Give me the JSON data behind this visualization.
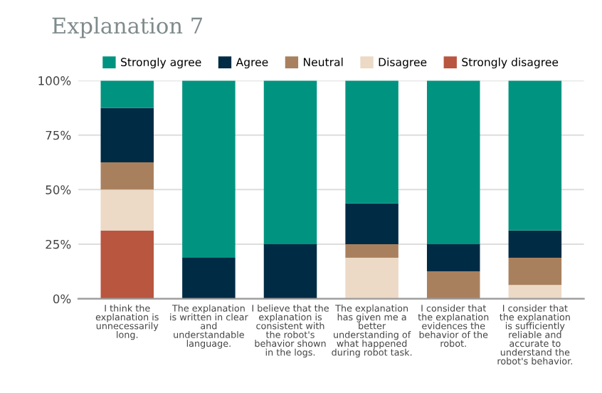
{
  "chart_data": {
    "type": "bar",
    "title": "Explanation 7",
    "stacked": true,
    "legend": "top",
    "grid": "y",
    "categories": [
      "I think the\nexplanation is\nunnecessarily\nlong.",
      "The explanation\nis written in clear\nand\nunderstandable\nlanguage.",
      "I believe that the\nexplanation is\nconsistent with\nthe robot's\nbehavior shown\nin the logs.",
      "The explanation\nhas given me a\nbetter\nunderstanding of\nwhat happened\nduring robot task.",
      "I consider that\nthe explanation\nevidences the\nbehavior of the\nrobot.",
      "I consider that\nthe explanation\nis sufficiently\nreliable and\naccurate to\nunderstand the\nrobot's behavior."
    ],
    "series": [
      {
        "name": "Strongly disagree",
        "color": "#b95640",
        "values": [
          31.25,
          0,
          0,
          0,
          0,
          0
        ]
      },
      {
        "name": "Disagree",
        "color": "#ecd9c6",
        "values": [
          18.75,
          0,
          0,
          18.75,
          0,
          6.25
        ]
      },
      {
        "name": "Neutral",
        "color": "#a9805e",
        "values": [
          12.5,
          0,
          0,
          6.25,
          12.5,
          12.5
        ]
      },
      {
        "name": "Agree",
        "color": "#002b45",
        "values": [
          25,
          18.75,
          25,
          18.75,
          12.5,
          12.5
        ]
      },
      {
        "name": "Strongly agree",
        "color": "#009480",
        "values": [
          12.5,
          81.25,
          75,
          56.25,
          75,
          68.75
        ]
      }
    ],
    "ylim": [
      0,
      100
    ],
    "yticks": [
      {
        "value": 0,
        "label": "0%"
      },
      {
        "value": 25,
        "label": "25%"
      },
      {
        "value": 50,
        "label": "50%"
      },
      {
        "value": 75,
        "label": "75%"
      },
      {
        "value": 100,
        "label": "100%"
      }
    ]
  }
}
